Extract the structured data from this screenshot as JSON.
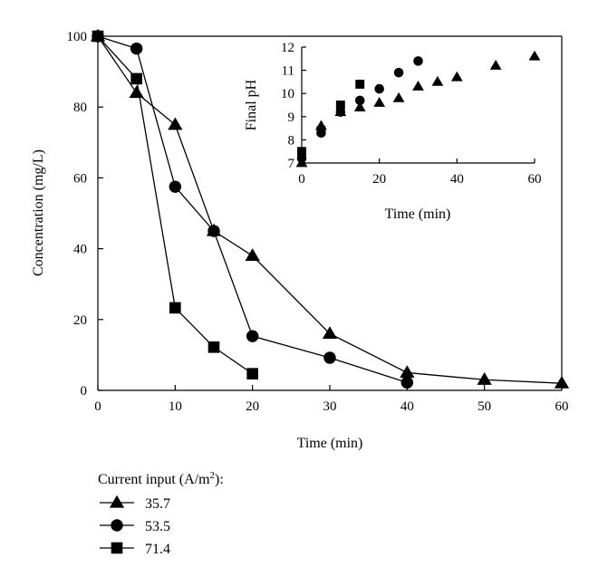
{
  "chart_data": [
    {
      "type": "line",
      "xlabel": "Time (min)",
      "ylabel": "Concentration (mg/L)",
      "xlim": [
        0,
        60
      ],
      "ylim": [
        0,
        100
      ],
      "xticks": [
        0,
        10,
        20,
        30,
        40,
        50,
        60
      ],
      "yticks": [
        0,
        20,
        40,
        60,
        80,
        100
      ],
      "series": [
        {
          "name": "35.7",
          "marker": "triangle",
          "x": [
            0,
            5,
            10,
            15,
            20,
            30,
            40,
            50,
            60
          ],
          "y": [
            100,
            84,
            75,
            45,
            38,
            16,
            5,
            3,
            2
          ]
        },
        {
          "name": "53.5",
          "marker": "circle",
          "x": [
            0,
            5,
            10,
            15,
            20,
            30,
            40
          ],
          "y": [
            100,
            96.5,
            57.5,
            45,
            15.3,
            9.2,
            2.2
          ]
        },
        {
          "name": "71.4",
          "marker": "square",
          "x": [
            0,
            5,
            10,
            15,
            20
          ],
          "y": [
            100,
            88,
            23.3,
            12.2,
            4.7
          ]
        }
      ]
    },
    {
      "type": "scatter",
      "xlabel": "Time (min)",
      "ylabel": "Final pH",
      "xlim": [
        0,
        60
      ],
      "ylim": [
        7,
        12
      ],
      "xticks": [
        0,
        20,
        40,
        60
      ],
      "yticks": [
        7,
        8,
        9,
        10,
        11,
        12
      ],
      "series": [
        {
          "name": "35.7",
          "marker": "triangle",
          "x": [
            0,
            5,
            10,
            15,
            20,
            25,
            30,
            35,
            40,
            50,
            60
          ],
          "y": [
            7.0,
            8.6,
            9.2,
            9.4,
            9.6,
            9.8,
            10.3,
            10.5,
            10.7,
            11.2,
            11.6
          ]
        },
        {
          "name": "53.5",
          "marker": "circle",
          "x": [
            0,
            5,
            10,
            15,
            20,
            25,
            30
          ],
          "y": [
            7.2,
            8.3,
            9.2,
            9.7,
            10.2,
            10.9,
            11.4
          ]
        },
        {
          "name": "71.4",
          "marker": "square",
          "x": [
            0,
            5,
            10,
            15
          ],
          "y": [
            7.5,
            8.4,
            9.5,
            10.4
          ]
        }
      ]
    }
  ],
  "legend": {
    "title": "Current input (A/m",
    "title_sup": "2",
    "title_tail": "):",
    "entries": [
      "35.7",
      "53.5",
      "71.4"
    ]
  }
}
